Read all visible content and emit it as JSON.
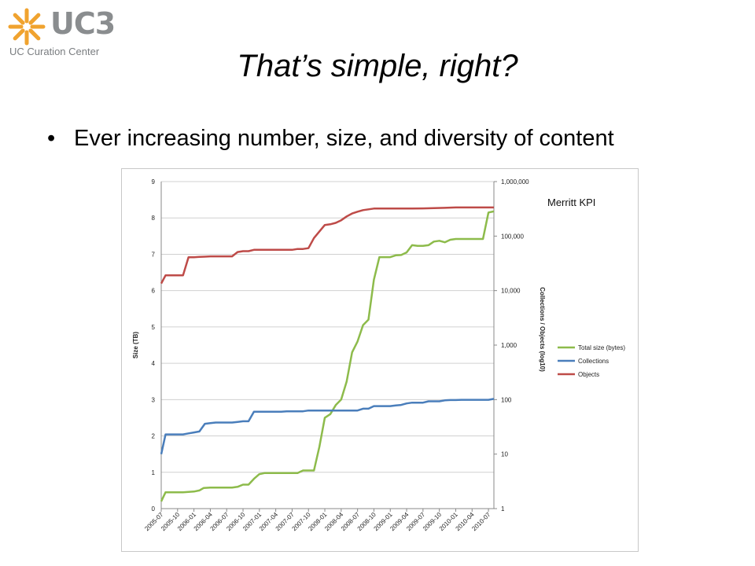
{
  "logo": {
    "wordmark": "UC3",
    "subtitle": "UC Curation Center",
    "accent_color": "#f0a32f"
  },
  "slide": {
    "title": "That’s simple, right?",
    "bullets": [
      "Ever increasing number, size, and diversity of content"
    ]
  },
  "chart_data": {
    "type": "line",
    "annotation": "Merritt KPI",
    "ylabel": "Size (TB)",
    "y2label": "Collections / Objects (log10)",
    "ylim": [
      0,
      9
    ],
    "yticks": [
      0,
      1,
      2,
      3,
      4,
      5,
      6,
      7,
      8,
      9
    ],
    "y2lim": [
      1,
      1000000
    ],
    "y2scale": "log",
    "y2ticks": [
      "1",
      "10",
      "100",
      "1,000",
      "10,000",
      "100,000",
      "1,000,000"
    ],
    "xlim": [
      0,
      61
    ],
    "xticks": [
      "2005-07",
      "2005-10",
      "2006-01",
      "2006-04",
      "2006-07",
      "2006-10",
      "2007-01",
      "2007-04",
      "2007-07",
      "2007-10",
      "2008-01",
      "2008-04",
      "2008-07",
      "2008-10",
      "2009-01",
      "2009-04",
      "2009-07",
      "2009-10",
      "2010-01",
      "2010-04",
      "2010-07"
    ],
    "x_tick_months": [
      0,
      3,
      6,
      9,
      12,
      15,
      18,
      21,
      24,
      27,
      30,
      33,
      36,
      39,
      42,
      45,
      48,
      51,
      54,
      57,
      60
    ],
    "grid": "horizontal",
    "legend_position": "right",
    "series": [
      {
        "name": "Total size (bytes)",
        "color": "#8dbb4b",
        "axis": "left",
        "points": [
          [
            0,
            0.2
          ],
          [
            0.8,
            0.45
          ],
          [
            2,
            0.45
          ],
          [
            4,
            0.45
          ],
          [
            6,
            0.47
          ],
          [
            7,
            0.5
          ],
          [
            7.8,
            0.57
          ],
          [
            9,
            0.58
          ],
          [
            10,
            0.58
          ],
          [
            11,
            0.58
          ],
          [
            13,
            0.58
          ],
          [
            14,
            0.6
          ],
          [
            15,
            0.66
          ],
          [
            16,
            0.66
          ],
          [
            17,
            0.82
          ],
          [
            18,
            0.95
          ],
          [
            19,
            0.98
          ],
          [
            21,
            0.98
          ],
          [
            25,
            0.98
          ],
          [
            26,
            1.05
          ],
          [
            28,
            1.05
          ],
          [
            29,
            1.7
          ],
          [
            30,
            2.5
          ],
          [
            31,
            2.6
          ],
          [
            32,
            2.85
          ],
          [
            33,
            3.0
          ],
          [
            34,
            3.5
          ],
          [
            35,
            4.3
          ],
          [
            36,
            4.6
          ],
          [
            37,
            5.05
          ],
          [
            38,
            5.2
          ],
          [
            39,
            6.3
          ],
          [
            40,
            6.92
          ],
          [
            41,
            6.92
          ],
          [
            42,
            6.92
          ],
          [
            43,
            6.97
          ],
          [
            44,
            6.98
          ],
          [
            45,
            7.05
          ],
          [
            46,
            7.25
          ],
          [
            47,
            7.23
          ],
          [
            48,
            7.23
          ],
          [
            49,
            7.25
          ],
          [
            50,
            7.35
          ],
          [
            51,
            7.37
          ],
          [
            52,
            7.33
          ],
          [
            53,
            7.4
          ],
          [
            54,
            7.42
          ],
          [
            56,
            7.42
          ],
          [
            58,
            7.42
          ],
          [
            59,
            7.42
          ],
          [
            60,
            8.15
          ],
          [
            61,
            8.18
          ]
        ]
      },
      {
        "name": "Collections",
        "color": "#4a7ebb",
        "axis": "right",
        "points": [
          [
            0,
            10
          ],
          [
            0.8,
            23
          ],
          [
            2,
            23
          ],
          [
            4,
            23
          ],
          [
            5,
            24
          ],
          [
            6,
            25
          ],
          [
            7,
            26
          ],
          [
            8,
            36
          ],
          [
            9,
            37
          ],
          [
            10,
            38
          ],
          [
            12,
            38
          ],
          [
            13,
            38
          ],
          [
            14,
            39
          ],
          [
            15,
            40
          ],
          [
            16,
            40
          ],
          [
            17,
            60
          ],
          [
            18,
            60
          ],
          [
            22,
            60
          ],
          [
            23,
            61
          ],
          [
            24,
            61
          ],
          [
            26,
            61
          ],
          [
            27,
            63
          ],
          [
            30,
            63
          ],
          [
            32,
            63
          ],
          [
            34,
            63
          ],
          [
            36,
            63
          ],
          [
            37,
            68
          ],
          [
            38,
            68
          ],
          [
            39,
            76
          ],
          [
            40,
            76
          ],
          [
            42,
            76
          ],
          [
            43,
            78
          ],
          [
            44,
            80
          ],
          [
            45,
            85
          ],
          [
            46,
            88
          ],
          [
            48,
            88
          ],
          [
            49,
            93
          ],
          [
            50,
            93
          ],
          [
            51,
            93
          ],
          [
            52,
            97
          ],
          [
            53,
            98
          ],
          [
            54,
            98
          ],
          [
            55,
            99
          ],
          [
            56,
            99
          ],
          [
            58,
            99
          ],
          [
            60,
            99
          ],
          [
            61,
            103
          ]
        ]
      },
      {
        "name": "Objects",
        "color": "#be4b48",
        "axis": "right",
        "points": [
          [
            0,
            13500
          ],
          [
            0.8,
            19000
          ],
          [
            2,
            19000
          ],
          [
            4,
            19000
          ],
          [
            5,
            41000
          ],
          [
            6,
            41000
          ],
          [
            7,
            41500
          ],
          [
            8,
            42000
          ],
          [
            9,
            42500
          ],
          [
            10,
            42500
          ],
          [
            12,
            42500
          ],
          [
            13,
            42500
          ],
          [
            14,
            51000
          ],
          [
            15,
            53000
          ],
          [
            16,
            53000
          ],
          [
            17,
            56000
          ],
          [
            18,
            56000
          ],
          [
            20,
            56000
          ],
          [
            24,
            56000
          ],
          [
            25,
            58000
          ],
          [
            26,
            58000
          ],
          [
            27,
            60000
          ],
          [
            28,
            92000
          ],
          [
            30,
            160000
          ],
          [
            31,
            165000
          ],
          [
            32,
            175000
          ],
          [
            33,
            195000
          ],
          [
            34,
            230000
          ],
          [
            35,
            260000
          ],
          [
            36,
            280000
          ],
          [
            37,
            300000
          ],
          [
            38,
            310000
          ],
          [
            39,
            320000
          ],
          [
            40,
            320000
          ],
          [
            42,
            320000
          ],
          [
            44,
            320000
          ],
          [
            46,
            320000
          ],
          [
            48,
            322000
          ],
          [
            50,
            325000
          ],
          [
            52,
            330000
          ],
          [
            54,
            335000
          ],
          [
            56,
            335000
          ],
          [
            58,
            335000
          ],
          [
            60,
            335000
          ],
          [
            61,
            335000
          ]
        ]
      }
    ]
  }
}
